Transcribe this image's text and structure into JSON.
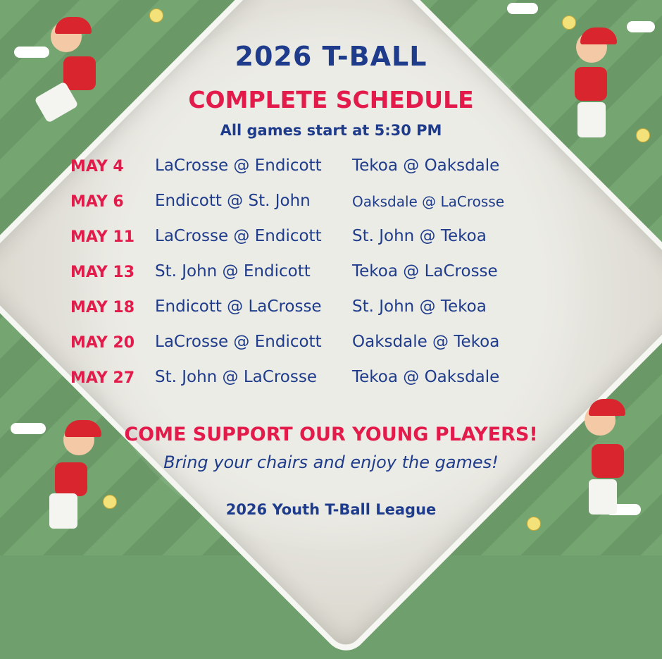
{
  "header": {
    "title": "2026 T-BALL",
    "subtitle": "COMPLETE SCHEDULE",
    "start_time_note": "All games start at 5:30 PM"
  },
  "schedule": [
    {
      "date": "MAY 4",
      "game1": "LaCrosse @ Endicott",
      "game2": "Tekoa @ Oaksdale"
    },
    {
      "date": "MAY 6",
      "game1": "Endicott @ St. John",
      "game2": "Oaksdale @ LaCrosse"
    },
    {
      "date": "MAY 11",
      "game1": "LaCrosse @ Endicott",
      "game2": "St. John @ Tekoa"
    },
    {
      "date": "MAY 13",
      "game1": "St. John @ Endicott",
      "game2": "Tekoa @ LaCrosse"
    },
    {
      "date": "MAY 18",
      "game1": "Endicott @ LaCrosse",
      "game2": "St. John @ Tekoa"
    },
    {
      "date": "MAY 20",
      "game1": "LaCrosse @ Endicott",
      "game2": "Oaksdale @ Tekoa"
    },
    {
      "date": "MAY 27",
      "game1": "St. John @ LaCrosse",
      "game2": "Tekoa @ Oaksdale"
    }
  ],
  "footer": {
    "call_to_action": "COME SUPPORT OUR YOUNG PLAYERS!",
    "invitation": "Bring your chairs and enjoy the games!",
    "league_name": "2026 Youth T-Ball League"
  },
  "colors": {
    "blue": "#1f3c8c",
    "red": "#e31b4b",
    "grass": "#6f9f6c"
  }
}
